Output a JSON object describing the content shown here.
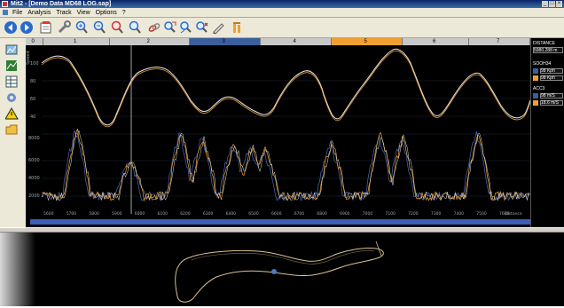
{
  "window": {
    "title": "Mit2 - [Demo Data MD68 LOG.sap]"
  },
  "menu": {
    "items": [
      "File",
      "Analysis",
      "Track",
      "View",
      "Options",
      "?"
    ]
  },
  "toolbar": {
    "icons": [
      "back-icon",
      "forward-icon",
      "open-file-icon",
      "wrench-icon",
      "zoom-in-icon",
      "zoom-out-icon",
      "zoom-fit-icon",
      "zoom-reset-icon",
      "link-icon",
      "measure-icon",
      "track-icon",
      "marker-icon",
      "pencil-icon",
      "settings-icon"
    ]
  },
  "laps": {
    "labels": [
      "0",
      "1",
      "2",
      "3",
      "4",
      "5",
      "6",
      "7"
    ],
    "active_colors": {
      "3": "#3a5f9c",
      "5": "#f0a030"
    }
  },
  "chart": {
    "upper_axis_label": "Speed",
    "upper_ticks": [
      "100",
      "80",
      "60",
      "40"
    ],
    "lower_ticks": [
      "8000",
      "6000",
      "4000",
      "2000"
    ],
    "x_ticks": [
      "5600",
      "5700",
      "5800",
      "5900",
      "6000",
      "6100",
      "6200",
      "6300",
      "6400",
      "6500",
      "6600",
      "6700",
      "6800",
      "6900",
      "7000",
      "7100",
      "7200",
      "7300",
      "7400",
      "7500",
      "7600"
    ],
    "x_axis_label": "Distance",
    "series_colors": [
      "#ffffff",
      "#f0a030",
      "#4a6ab8"
    ]
  },
  "right_panel": {
    "distance_label": "DISTANCE",
    "distance_value": "5980.288 m",
    "speed_label": "SOOH34",
    "speed_values": [
      "98 Kph",
      "98 Kph"
    ],
    "rpm_label": "ACC3",
    "rpm_values": [
      "98 m/S",
      "18.6 m/S"
    ],
    "swatch_colors": [
      "#3a5f9c",
      "#f0a030"
    ]
  }
}
